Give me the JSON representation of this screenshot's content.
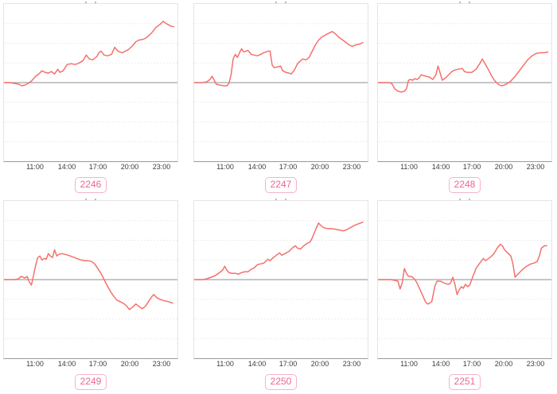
{
  "page": {
    "background": "#ffffff"
  },
  "style": {
    "line_color": "#f4716c",
    "pill_border_color": "#f7b3c8",
    "pill_text_color": "#e9688f",
    "grid_color": "#ededed",
    "zero_line_color": "#a3a3a3",
    "box_border_color": "#e4e4e4",
    "axis_line_color": "#999999",
    "tick_text_color": "#3c3c3c"
  },
  "axis": {
    "x_domain_hours": [
      8,
      24.45
    ],
    "tick_hours": [
      11,
      14,
      17,
      20,
      23
    ],
    "tick_labels": [
      "11:00",
      "14:00",
      "17:00",
      "20:00",
      "23:00"
    ],
    "grid_values": [
      75,
      50,
      25,
      -25,
      -50,
      -75
    ],
    "zero_line": 0
  },
  "chart_data": [
    {
      "type": "line",
      "label": "2246",
      "ylim": [
        -100,
        100
      ],
      "x": [
        8,
        8.5,
        9,
        9.4,
        9.7,
        10,
        10.3,
        10.6,
        11,
        11.3,
        11.6,
        11.9,
        12.2,
        12.5,
        12.8,
        13.1,
        13.3,
        13.6,
        14,
        14.4,
        14.7,
        15,
        15.5,
        15.8,
        16.1,
        16.4,
        16.8,
        17,
        17.2,
        17.5,
        17.8,
        18.2,
        18.5,
        18.8,
        19.2,
        19.5,
        19.8,
        20.2,
        20.5,
        20.8,
        21.2,
        21.5,
        22,
        22.4,
        22.8,
        23.1,
        23.4,
        23.8,
        24.1
      ],
      "y": [
        0,
        0,
        -1,
        -2,
        -4,
        -3,
        -1,
        2,
        8,
        11,
        15,
        13,
        12,
        14,
        11,
        17,
        13,
        15,
        23,
        24,
        23,
        24,
        28,
        35,
        30,
        29,
        33,
        38,
        40,
        35,
        34,
        36,
        45,
        40,
        38,
        40,
        42,
        47,
        52,
        54,
        55,
        57,
        63,
        70,
        74,
        78,
        75,
        72,
        71
      ]
    },
    {
      "type": "line",
      "label": "2247",
      "ylim": [
        -100,
        100
      ],
      "x": [
        8,
        8.5,
        8.8,
        9.2,
        9.5,
        9.7,
        9.9,
        10.1,
        10.4,
        10.8,
        11.1,
        11.3,
        11.5,
        11.7,
        11.9,
        12.1,
        12.3,
        12.5,
        12.7,
        12.9,
        13.1,
        13.4,
        13.7,
        14,
        14.3,
        14.6,
        15,
        15.2,
        15.4,
        15.6,
        15.9,
        16.2,
        16.4,
        16.7,
        17,
        17.2,
        17.5,
        17.8,
        18.1,
        18.3,
        18.6,
        18.9,
        19.2,
        19.5,
        19.8,
        20.1,
        20.5,
        20.8,
        21.1,
        21.4,
        21.7,
        22,
        22.4,
        22.7,
        23,
        23.3,
        23.7,
        24
      ],
      "y": [
        0,
        0,
        0,
        1,
        4,
        8,
        3,
        -2,
        -3,
        -4,
        -4,
        -1,
        10,
        30,
        36,
        32,
        38,
        43,
        39,
        40,
        41,
        36,
        35,
        34,
        36,
        38,
        40,
        40,
        22,
        19,
        20,
        21,
        15,
        13,
        12,
        11,
        16,
        24,
        28,
        30,
        29,
        32,
        40,
        48,
        54,
        58,
        61,
        63,
        65,
        62,
        58,
        55,
        51,
        48,
        46,
        48,
        49,
        51
      ]
    },
    {
      "type": "line",
      "label": "2248",
      "ylim": [
        -100,
        100
      ],
      "x": [
        8,
        8.5,
        9,
        9.3,
        9.6,
        9.9,
        10.2,
        10.5,
        10.7,
        10.9,
        11.1,
        11.3,
        11.5,
        11.7,
        11.9,
        12.1,
        12.3,
        12.6,
        12.9,
        13.2,
        13.5,
        13.7,
        13.9,
        14.1,
        14.4,
        14.7,
        15,
        15.3,
        15.6,
        16,
        16.2,
        16.5,
        16.9,
        17.3,
        17.6,
        17.9,
        18.2,
        18.5,
        18.8,
        19.1,
        19.4,
        19.7,
        20,
        20.3,
        20.6,
        21,
        21.4,
        21.8,
        22.2,
        22.6,
        23,
        23.4,
        23.8,
        24.1
      ],
      "y": [
        0,
        0,
        0,
        -1,
        -8,
        -11,
        -12,
        -11,
        -8,
        3,
        4,
        3,
        5,
        4,
        6,
        10,
        9,
        8,
        7,
        4,
        10,
        21,
        12,
        3,
        6,
        10,
        14,
        16,
        17,
        18,
        14,
        13,
        13,
        17,
        23,
        30,
        23,
        16,
        8,
        2,
        -2,
        -4,
        -3,
        -1,
        2,
        8,
        15,
        22,
        29,
        34,
        37,
        38,
        38,
        39
      ]
    },
    {
      "type": "line",
      "label": "2249",
      "ylim": [
        -100,
        100
      ],
      "x": [
        8,
        8.5,
        9,
        9.4,
        9.6,
        9.8,
        10,
        10.2,
        10.4,
        10.6,
        10.8,
        11,
        11.2,
        11.4,
        11.6,
        11.8,
        12,
        12.2,
        12.4,
        12.6,
        12.8,
        13,
        13.2,
        13.5,
        13.8,
        14.1,
        14.5,
        14.9,
        15.3,
        15.7,
        16,
        16.3,
        16.6,
        16.9,
        17.2,
        17.5,
        17.8,
        18.1,
        18.4,
        18.7,
        19,
        19.3,
        19.6,
        19.9,
        20.2,
        20.5,
        20.8,
        21.1,
        21.4,
        21.7,
        22,
        22.2,
        22.5,
        22.8,
        23.2,
        23.6,
        24
      ],
      "y": [
        0,
        0,
        0,
        1,
        4,
        3,
        2,
        4,
        -3,
        -7,
        5,
        18,
        28,
        30,
        25,
        27,
        26,
        33,
        30,
        28,
        38,
        30,
        32,
        33,
        32,
        31,
        29,
        27,
        25,
        24,
        24,
        23,
        20,
        14,
        8,
        0,
        -8,
        -15,
        -21,
        -26,
        -28,
        -30,
        -33,
        -38,
        -35,
        -31,
        -34,
        -37,
        -34,
        -28,
        -22,
        -19,
        -23,
        -25,
        -27,
        -28,
        -30
      ]
    },
    {
      "type": "line",
      "label": "2250",
      "ylim": [
        -100,
        100
      ],
      "x": [
        8,
        8.4,
        8.8,
        9.2,
        9.6,
        10,
        10.4,
        10.7,
        10.9,
        11.1,
        11.3,
        11.6,
        11.9,
        12.2,
        12.5,
        12.8,
        13.1,
        13.4,
        13.7,
        14,
        14.3,
        14.6,
        15,
        15.2,
        15.5,
        15.8,
        16.1,
        16.3,
        16.6,
        17,
        17.3,
        17.6,
        17.8,
        18.1,
        18.4,
        18.7,
        19,
        19.2,
        19.5,
        19.8,
        20,
        20.3,
        20.6,
        21,
        21.4,
        21.8,
        22.1,
        22.4,
        22.8,
        23.2,
        23.6,
        24
      ],
      "y": [
        0,
        0,
        0,
        1,
        3,
        5,
        9,
        12,
        17,
        12,
        9,
        8,
        8,
        7,
        9,
        10,
        10,
        13,
        15,
        19,
        20,
        21,
        26,
        24,
        28,
        31,
        34,
        31,
        33,
        36,
        40,
        43,
        40,
        39,
        43,
        46,
        48,
        53,
        63,
        72,
        69,
        66,
        65,
        65,
        64,
        63,
        62,
        63,
        66,
        69,
        71,
        73
      ]
    },
    {
      "type": "line",
      "label": "2251",
      "ylim": [
        -100,
        100
      ],
      "x": [
        8,
        8.4,
        8.8,
        9.2,
        9.6,
        9.9,
        10.1,
        10.3,
        10.5,
        10.7,
        10.9,
        11.1,
        11.3,
        11.5,
        11.7,
        11.9,
        12.1,
        12.3,
        12.5,
        12.7,
        12.9,
        13.1,
        13.4,
        13.6,
        13.9,
        14.1,
        14.4,
        14.7,
        14.9,
        15.1,
        15.3,
        15.5,
        15.7,
        15.9,
        16.1,
        16.3,
        16.5,
        16.7,
        17,
        17.3,
        17.6,
        18,
        18.2,
        18.4,
        18.7,
        19,
        19.3,
        19.6,
        19.8,
        20,
        20.3,
        20.6,
        20.8,
        21,
        21.2,
        21.5,
        21.8,
        22.1,
        22.5,
        22.8,
        23.1,
        23.3,
        23.5,
        23.8,
        24
      ],
      "y": [
        0,
        0,
        0,
        0,
        -1,
        -2,
        -12,
        -4,
        14,
        8,
        4,
        4,
        3,
        0,
        -4,
        -10,
        -16,
        -22,
        -28,
        -31,
        -30,
        -28,
        -8,
        -2,
        -2,
        -3,
        -5,
        -6,
        -4,
        3,
        -6,
        -19,
        -13,
        -9,
        -11,
        -6,
        -9,
        -7,
        4,
        14,
        20,
        27,
        24,
        26,
        29,
        33,
        40,
        45,
        43,
        38,
        34,
        30,
        20,
        3,
        6,
        10,
        14,
        17,
        20,
        21,
        23,
        30,
        40,
        43,
        43
      ]
    }
  ]
}
